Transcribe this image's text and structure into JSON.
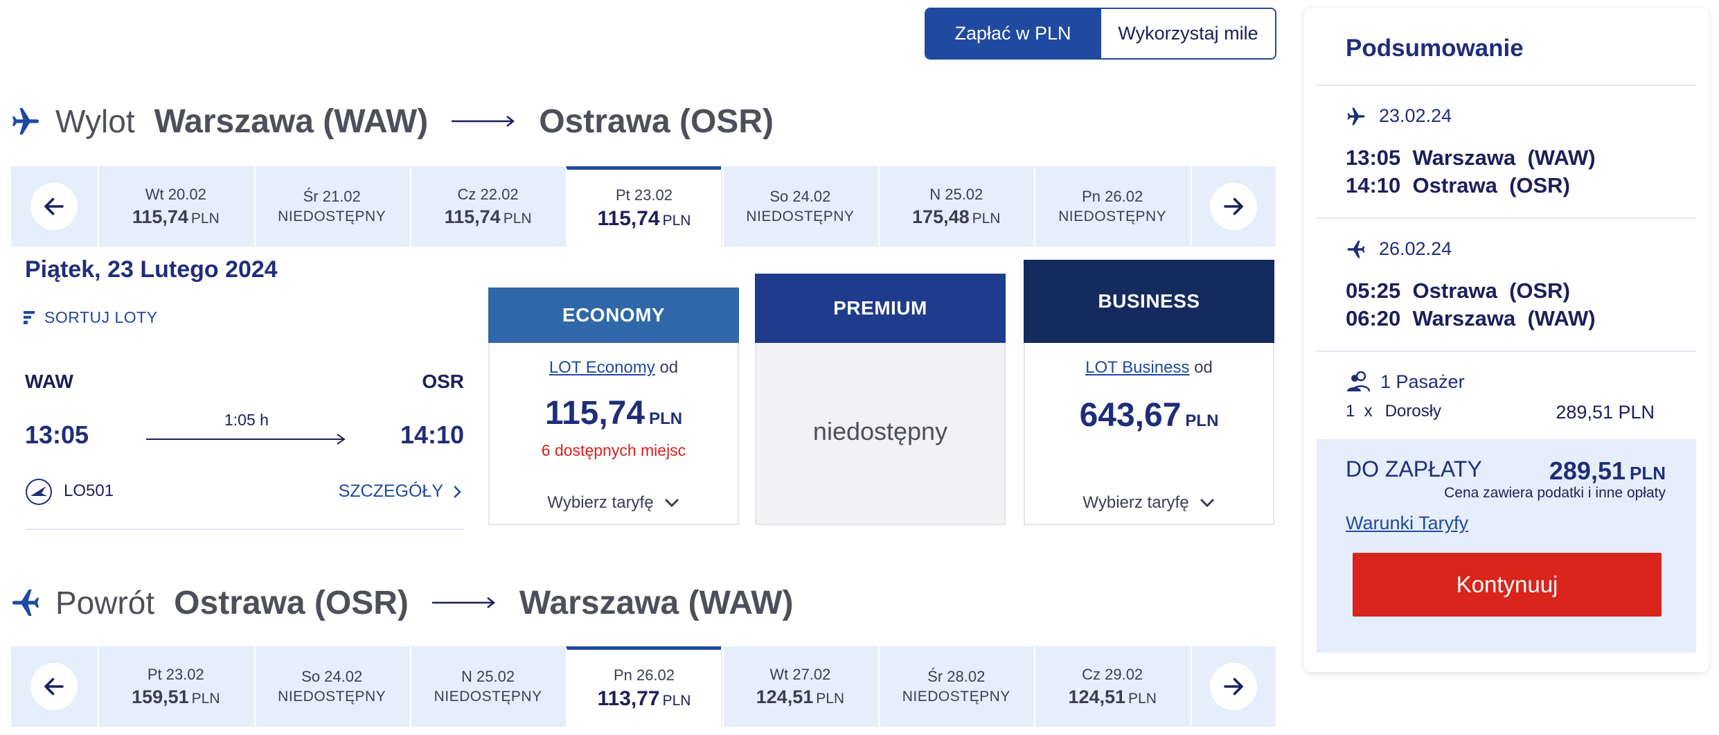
{
  "currency_toggle": {
    "pay_pln": "Zapłać w PLN",
    "use_miles": "Wykorzystaj mile"
  },
  "outbound": {
    "direction": "Wylot",
    "from": "Warszawa (WAW)",
    "to": "Ostrawa (OSR)",
    "dates": [
      {
        "date": "Wt 20.02",
        "price": "115,74",
        "currency": "PLN",
        "available": true
      },
      {
        "date": "Śr 21.02",
        "unavailable": "NIEDOSTĘPNY",
        "available": false
      },
      {
        "date": "Cz 22.02",
        "price": "115,74",
        "currency": "PLN",
        "available": true
      },
      {
        "date": "Pt 23.02",
        "price": "115,74",
        "currency": "PLN",
        "available": true,
        "selected": true
      },
      {
        "date": "So 24.02",
        "unavailable": "NIEDOSTĘPNY",
        "available": false
      },
      {
        "date": "N 25.02",
        "price": "175,48",
        "currency": "PLN",
        "available": true
      },
      {
        "date": "Pn 26.02",
        "unavailable": "NIEDOSTĘPNY",
        "available": false
      }
    ]
  },
  "selected_day_title": "Piątek, 23 Lutego 2024",
  "sort_label": "SORTUJ LOTY",
  "flight": {
    "from_code": "WAW",
    "to_code": "OSR",
    "departure": "13:05",
    "arrival": "14:10",
    "duration": "1:05 h",
    "flight_number": "LO501",
    "details": "SZCZEGÓŁY"
  },
  "fares": {
    "economy": {
      "header": "ECONOMY",
      "link": "LOT Economy",
      "from": "od",
      "price": "115,74",
      "currency": "PLN",
      "seats": "6 dostępnych miejsc",
      "choose": "Wybierz taryfę",
      "color": "#2f67a8"
    },
    "premium": {
      "header": "PREMIUM",
      "unavailable": "niedostępny",
      "color": "#1e3b8c"
    },
    "business": {
      "header": "BUSINESS",
      "link": "LOT Business",
      "from": "od",
      "price": "643,67",
      "currency": "PLN",
      "choose": "Wybierz taryfę",
      "color": "#142b5e"
    }
  },
  "inbound": {
    "direction": "Powrót",
    "from": "Ostrawa (OSR)",
    "to": "Warszawa (WAW)",
    "dates": [
      {
        "date": "Pt 23.02",
        "price": "159,51",
        "currency": "PLN",
        "available": true
      },
      {
        "date": "So 24.02",
        "unavailable": "NIEDOSTĘPNY",
        "available": false
      },
      {
        "date": "N 25.02",
        "unavailable": "NIEDOSTĘPNY",
        "available": false
      },
      {
        "date": "Pn 26.02",
        "price": "113,77",
        "currency": "PLN",
        "available": true,
        "selected": true
      },
      {
        "date": "Wt 27.02",
        "price": "124,51",
        "currency": "PLN",
        "available": true
      },
      {
        "date": "Śr 28.02",
        "unavailable": "NIEDOSTĘPNY",
        "available": false
      },
      {
        "date": "Cz 29.02",
        "price": "124,51",
        "currency": "PLN",
        "available": true
      }
    ]
  },
  "summary": {
    "title": "Podsumowanie",
    "outbound_date": "23.02.24",
    "outbound_dep": "13:05  Warszawa  (WAW)",
    "outbound_arr": "14:10  Ostrawa  (OSR)",
    "inbound_date": "26.02.24",
    "inbound_dep": "05:25  Ostrawa  (OSR)",
    "inbound_arr": "06:20  Warszawa  (WAW)",
    "passengers": "1 Pasażer",
    "pax_count": "1  x",
    "pax_type": "Dorosły",
    "pax_amount": "289,51 PLN",
    "due_label": "DO ZAPŁATY",
    "total": "289,51",
    "total_currency": "PLN",
    "note": "Cena zawiera podatki i inne opłaty",
    "terms": "Warunki Taryfy",
    "continue": "Kontynuuj"
  },
  "icons": {
    "plane": "plane-icon",
    "arrow_left": "arrow-left-icon",
    "arrow_right": "arrow-right-icon",
    "sort": "sort-icon",
    "chevron_down": "chevron-down-icon",
    "chevron_right": "chevron-right-icon",
    "passenger": "passenger-icon",
    "lot_logo": "lot-logo-icon"
  },
  "colors": {
    "primary": "#1f4aa0",
    "navy": "#1f2e78",
    "strip_bg": "#e6eefb",
    "cta_red": "#d9251c",
    "alert_red": "#d9201b"
  }
}
